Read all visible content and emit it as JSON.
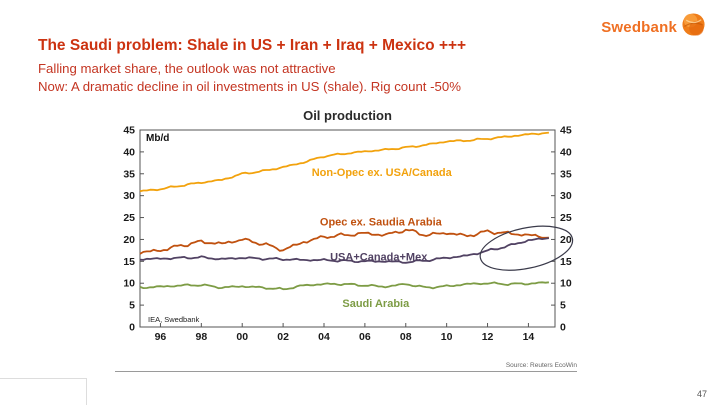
{
  "header": {
    "logo_text": "Swedbank",
    "title": "The Saudi problem: Shale in US + Iran + Iraq + Mexico +++",
    "subtitle1": "Falling market share, the outlook was not attractive",
    "subtitle2": "Now: A dramatic decline in oil investments in US (shale). Rig count -50%"
  },
  "footer": {
    "source_note": "Source: Reuters EcoWin",
    "page_number": "47"
  },
  "colors": {
    "title_red": "#cc3311",
    "brand_orange": "#ef7023"
  },
  "chart_data": {
    "type": "line",
    "title": "Oil production",
    "unit_label": "Mb/d",
    "source_label": "IEA, Swedbank",
    "ylim": [
      0,
      45
    ],
    "yticks": [
      0,
      5,
      10,
      15,
      20,
      25,
      30,
      35,
      40,
      45
    ],
    "xlim": [
      1995,
      2015.3
    ],
    "xticks": [
      {
        "year": 1996,
        "label": "96"
      },
      {
        "year": 1998,
        "label": "98"
      },
      {
        "year": 2000,
        "label": "00"
      },
      {
        "year": 2002,
        "label": "02"
      },
      {
        "year": 2004,
        "label": "04"
      },
      {
        "year": 2006,
        "label": "06"
      },
      {
        "year": 2008,
        "label": "08"
      },
      {
        "year": 2010,
        "label": "10"
      },
      {
        "year": 2012,
        "label": "12"
      },
      {
        "year": 2014,
        "label": "14"
      }
    ],
    "x": [
      1995,
      1996,
      1997,
      1998,
      1999,
      2000,
      2001,
      2002,
      2003,
      2004,
      2005,
      2006,
      2007,
      2008,
      2009,
      2010,
      2011,
      2012,
      2013,
      2014,
      2015
    ],
    "series": [
      {
        "name": "Non-Opec ex. USA/Canada",
        "color": "#f2a20d",
        "label_x": 2003.4,
        "label_y": 34.5,
        "values": [
          31,
          31.5,
          32.3,
          33,
          33.6,
          35,
          35.6,
          36.5,
          37.6,
          39,
          39.6,
          40.1,
          40.5,
          41,
          41.6,
          42.4,
          42.6,
          43,
          43.5,
          44,
          44.4
        ]
      },
      {
        "name": "Opec ex. Saudia Arabia",
        "color": "#c0510f",
        "label_x": 2003.8,
        "label_y": 23.2,
        "values": [
          17,
          17.5,
          18.6,
          19.5,
          19,
          20,
          19,
          17.6,
          19.4,
          20.6,
          21,
          21.4,
          21,
          22.2,
          21,
          21.5,
          20.8,
          21.8,
          21.4,
          21,
          20.4
        ]
      },
      {
        "name": "USA+Canada+Mex",
        "color": "#514263",
        "label_x": 2004.3,
        "label_y": 15.2,
        "values": [
          15.5,
          15.6,
          15.8,
          15.9,
          15.5,
          15.8,
          15.6,
          15.5,
          15.3,
          15.3,
          15.1,
          15,
          15,
          14.8,
          15.2,
          15.8,
          16.3,
          17.4,
          18.5,
          19.8,
          20.3
        ]
      },
      {
        "name": "Saudi Arabia",
        "color": "#7d9c45",
        "label_x": 2004.9,
        "label_y": 4.6,
        "values": [
          9,
          9.2,
          9.5,
          9.6,
          9,
          9.3,
          9,
          8.6,
          9.5,
          9.8,
          9.8,
          9.5,
          9.2,
          9.8,
          9,
          9.3,
          9.8,
          10,
          9.8,
          9.9,
          10.2
        ]
      }
    ],
    "annotation_ellipse": {
      "center_x": 2013.9,
      "center_y": 18.0,
      "rx_years": 2.3,
      "ry_units": 4.6,
      "rotate_deg": -12
    }
  }
}
